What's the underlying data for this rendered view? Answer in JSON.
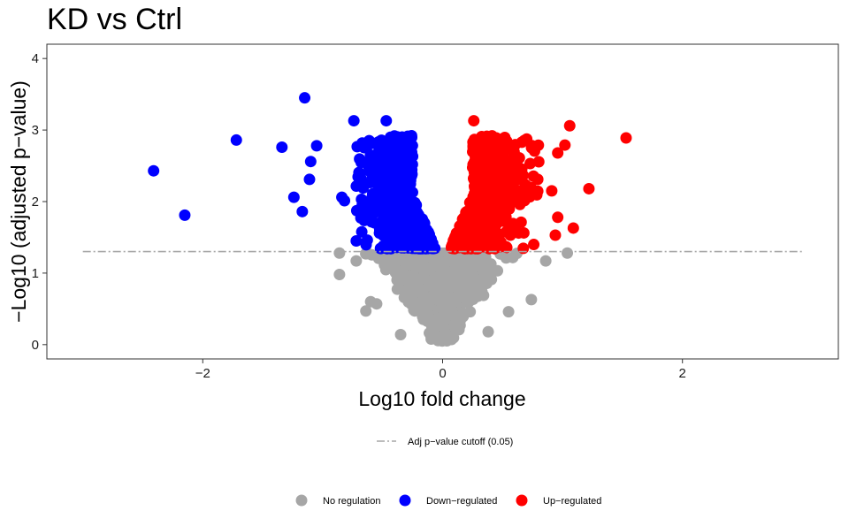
{
  "chart_data": {
    "type": "scatter",
    "title": "KD vs Ctrl",
    "xlabel": "Log10 fold change",
    "ylabel": "−Log10 (adjusted p−value)",
    "xlim": [
      -3.3,
      3.3
    ],
    "ylim": [
      -0.2,
      4.2
    ],
    "x_ticks": [
      {
        "value": -2,
        "label": "−2"
      },
      {
        "value": 0,
        "label": "0"
      },
      {
        "value": 2,
        "label": "2"
      }
    ],
    "y_ticks": [
      {
        "value": 0,
        "label": "0"
      },
      {
        "value": 1,
        "label": "1"
      },
      {
        "value": 2,
        "label": "2"
      },
      {
        "value": 3,
        "label": "3"
      },
      {
        "value": 4,
        "label": "4"
      }
    ],
    "cutoff": {
      "y": 1.30103,
      "x_range": [
        -3,
        3
      ],
      "label": "Adj p−value cutoff (0.05)",
      "color": "#a6a6a6"
    },
    "series": [
      {
        "name": "No regulation",
        "color": "#a6a6a6",
        "n_generated": 1100,
        "points": [
          [
            -0.86,
            0.98
          ],
          [
            -0.72,
            1.17
          ],
          [
            -0.64,
            0.47
          ],
          [
            -0.6,
            0.6
          ],
          [
            -0.55,
            0.57
          ],
          [
            0.74,
            0.63
          ],
          [
            0.55,
            0.46
          ],
          [
            0.86,
            1.17
          ],
          [
            1.04,
            1.28
          ],
          [
            0.38,
            0.18
          ],
          [
            -0.35,
            0.14
          ],
          [
            -0.86,
            1.28
          ]
        ]
      },
      {
        "name": "Down−regulated",
        "color": "#0000ff",
        "n_generated": 650,
        "points": [
          [
            -1.15,
            3.45
          ],
          [
            -0.74,
            3.13
          ],
          [
            -0.47,
            3.13
          ],
          [
            -1.72,
            2.86
          ],
          [
            -1.34,
            2.76
          ],
          [
            -2.41,
            2.43
          ],
          [
            -2.15,
            1.81
          ],
          [
            -1.24,
            2.06
          ],
          [
            -1.17,
            1.86
          ],
          [
            -1.11,
            2.31
          ],
          [
            -1.1,
            2.56
          ],
          [
            -1.05,
            2.78
          ],
          [
            -0.84,
            2.06
          ],
          [
            -0.72,
            1.45
          ]
        ]
      },
      {
        "name": "Up−regulated",
        "color": "#ff0000",
        "n_generated": 650,
        "points": [
          [
            0.26,
            3.13
          ],
          [
            1.53,
            2.89
          ],
          [
            1.06,
            3.06
          ],
          [
            1.02,
            2.79
          ],
          [
            0.96,
            2.68
          ],
          [
            1.22,
            2.18
          ],
          [
            0.91,
            2.15
          ],
          [
            0.96,
            1.78
          ],
          [
            1.09,
            1.63
          ],
          [
            0.94,
            1.53
          ],
          [
            0.76,
            1.4
          ],
          [
            0.64,
            2.61
          ]
        ]
      }
    ],
    "legend_position": "bottom"
  }
}
